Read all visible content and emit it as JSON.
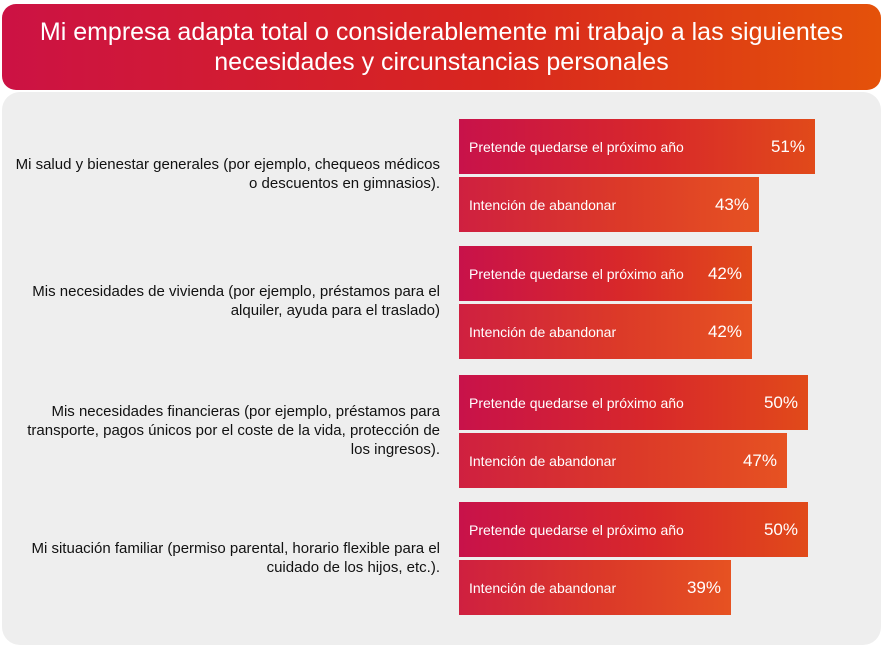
{
  "chart_data": {
    "type": "bar",
    "orientation": "horizontal",
    "title": "Mi empresa adapta total o considerablemente mi trabajo a las siguientes necesidades y circunstancias personales",
    "xlim": [
      0,
      100
    ],
    "unit": "%",
    "categories": [
      "Mi salud y bienestar generales (por ejemplo, chequeos médicos o descuentos en gimnasios).",
      "Mis necesidades de vivienda (por ejemplo, préstamos para el alquiler, ayuda para el traslado)",
      "Mis necesidades financieras (por ejemplo, préstamos para transporte, pagos únicos por el coste de la vida, protección de los ingresos).",
      "Mi situación familiar (permiso parental, horario flexible para el cuidado de los hijos, etc.)."
    ],
    "series": [
      {
        "name": "Pretende quedarse el próximo año",
        "values": [
          51,
          42,
          50,
          50
        ]
      },
      {
        "name": "Intención de abandonar",
        "values": [
          43,
          42,
          47,
          39
        ]
      }
    ],
    "value_labels": [
      [
        "51%",
        "43%"
      ],
      [
        "42%",
        "42%"
      ],
      [
        "50%",
        "47%"
      ],
      [
        "50%",
        "39%"
      ]
    ],
    "colors": {
      "gradient_start": "#c8124a",
      "gradient_end": "#e14a1a",
      "panel": "#eeeeee"
    }
  }
}
